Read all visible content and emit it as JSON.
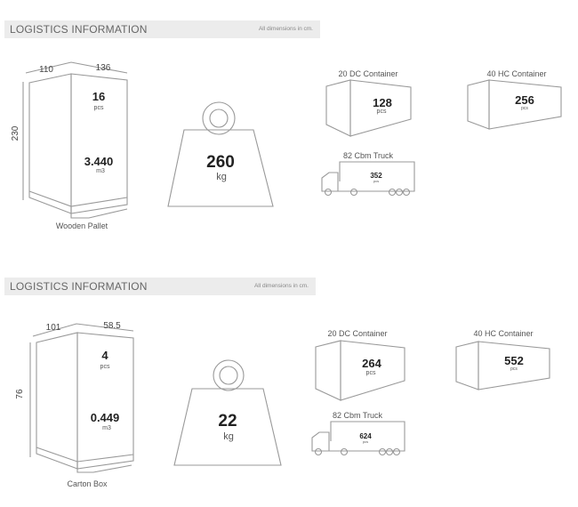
{
  "sections": [
    {
      "title": "LOGISTICS INFORMATION",
      "note": "All dimensions in cm.",
      "package": {
        "label": "Wooden Pallet",
        "width": "110",
        "depth": "136",
        "height": "230",
        "quantity": "16",
        "quantity_unit": "pcs",
        "volume": "3.440",
        "volume_unit": "m3"
      },
      "weight": {
        "value": "260",
        "unit": "kg"
      },
      "container_20dc": {
        "label": "20 DC Container",
        "value": "128",
        "unit": "pcs"
      },
      "container_40hc": {
        "label": "40 HC Container",
        "value": "256",
        "unit": "pcs"
      },
      "truck": {
        "label": "82 Cbm Truck",
        "value": "352",
        "unit": "pcs"
      }
    },
    {
      "title": "LOGISTICS INFORMATION",
      "note": "All dimensions in cm.",
      "package": {
        "label": "Carton Box",
        "width": "101",
        "depth": "58.5",
        "height": "76",
        "quantity": "4",
        "quantity_unit": "pcs",
        "volume": "0.449",
        "volume_unit": "m3"
      },
      "weight": {
        "value": "22",
        "unit": "kg"
      },
      "container_20dc": {
        "label": "20 DC Container",
        "value": "264",
        "unit": "pcs"
      },
      "container_40hc": {
        "label": "40 HC Container",
        "value": "552",
        "unit": "pcs"
      },
      "truck": {
        "label": "82 Cbm Truck",
        "value": "624",
        "unit": "pcs"
      }
    }
  ]
}
